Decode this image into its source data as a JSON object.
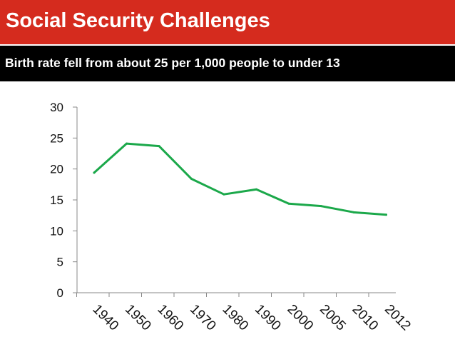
{
  "header": {
    "title": "Social Security Challenges",
    "subtitle": "Birth rate fell from about 25 per 1,000 people to under 13"
  },
  "colors": {
    "title_bar": "#d52b1e",
    "subtitle_bar": "#000000",
    "line": "#1ba84a"
  },
  "chart_data": {
    "type": "line",
    "categories": [
      "1940",
      "1950",
      "1960",
      "1970",
      "1980",
      "1990",
      "2000",
      "2005",
      "2010",
      "2012"
    ],
    "series": [
      {
        "values": [
          19.4,
          24.1,
          23.7,
          18.4,
          15.9,
          16.7,
          14.4,
          14.0,
          13.0,
          12.6
        ]
      }
    ],
    "ylim": [
      0,
      30
    ],
    "yticks": [
      0,
      5,
      10,
      15,
      20,
      25,
      30
    ],
    "grid": false,
    "legend": "none"
  }
}
